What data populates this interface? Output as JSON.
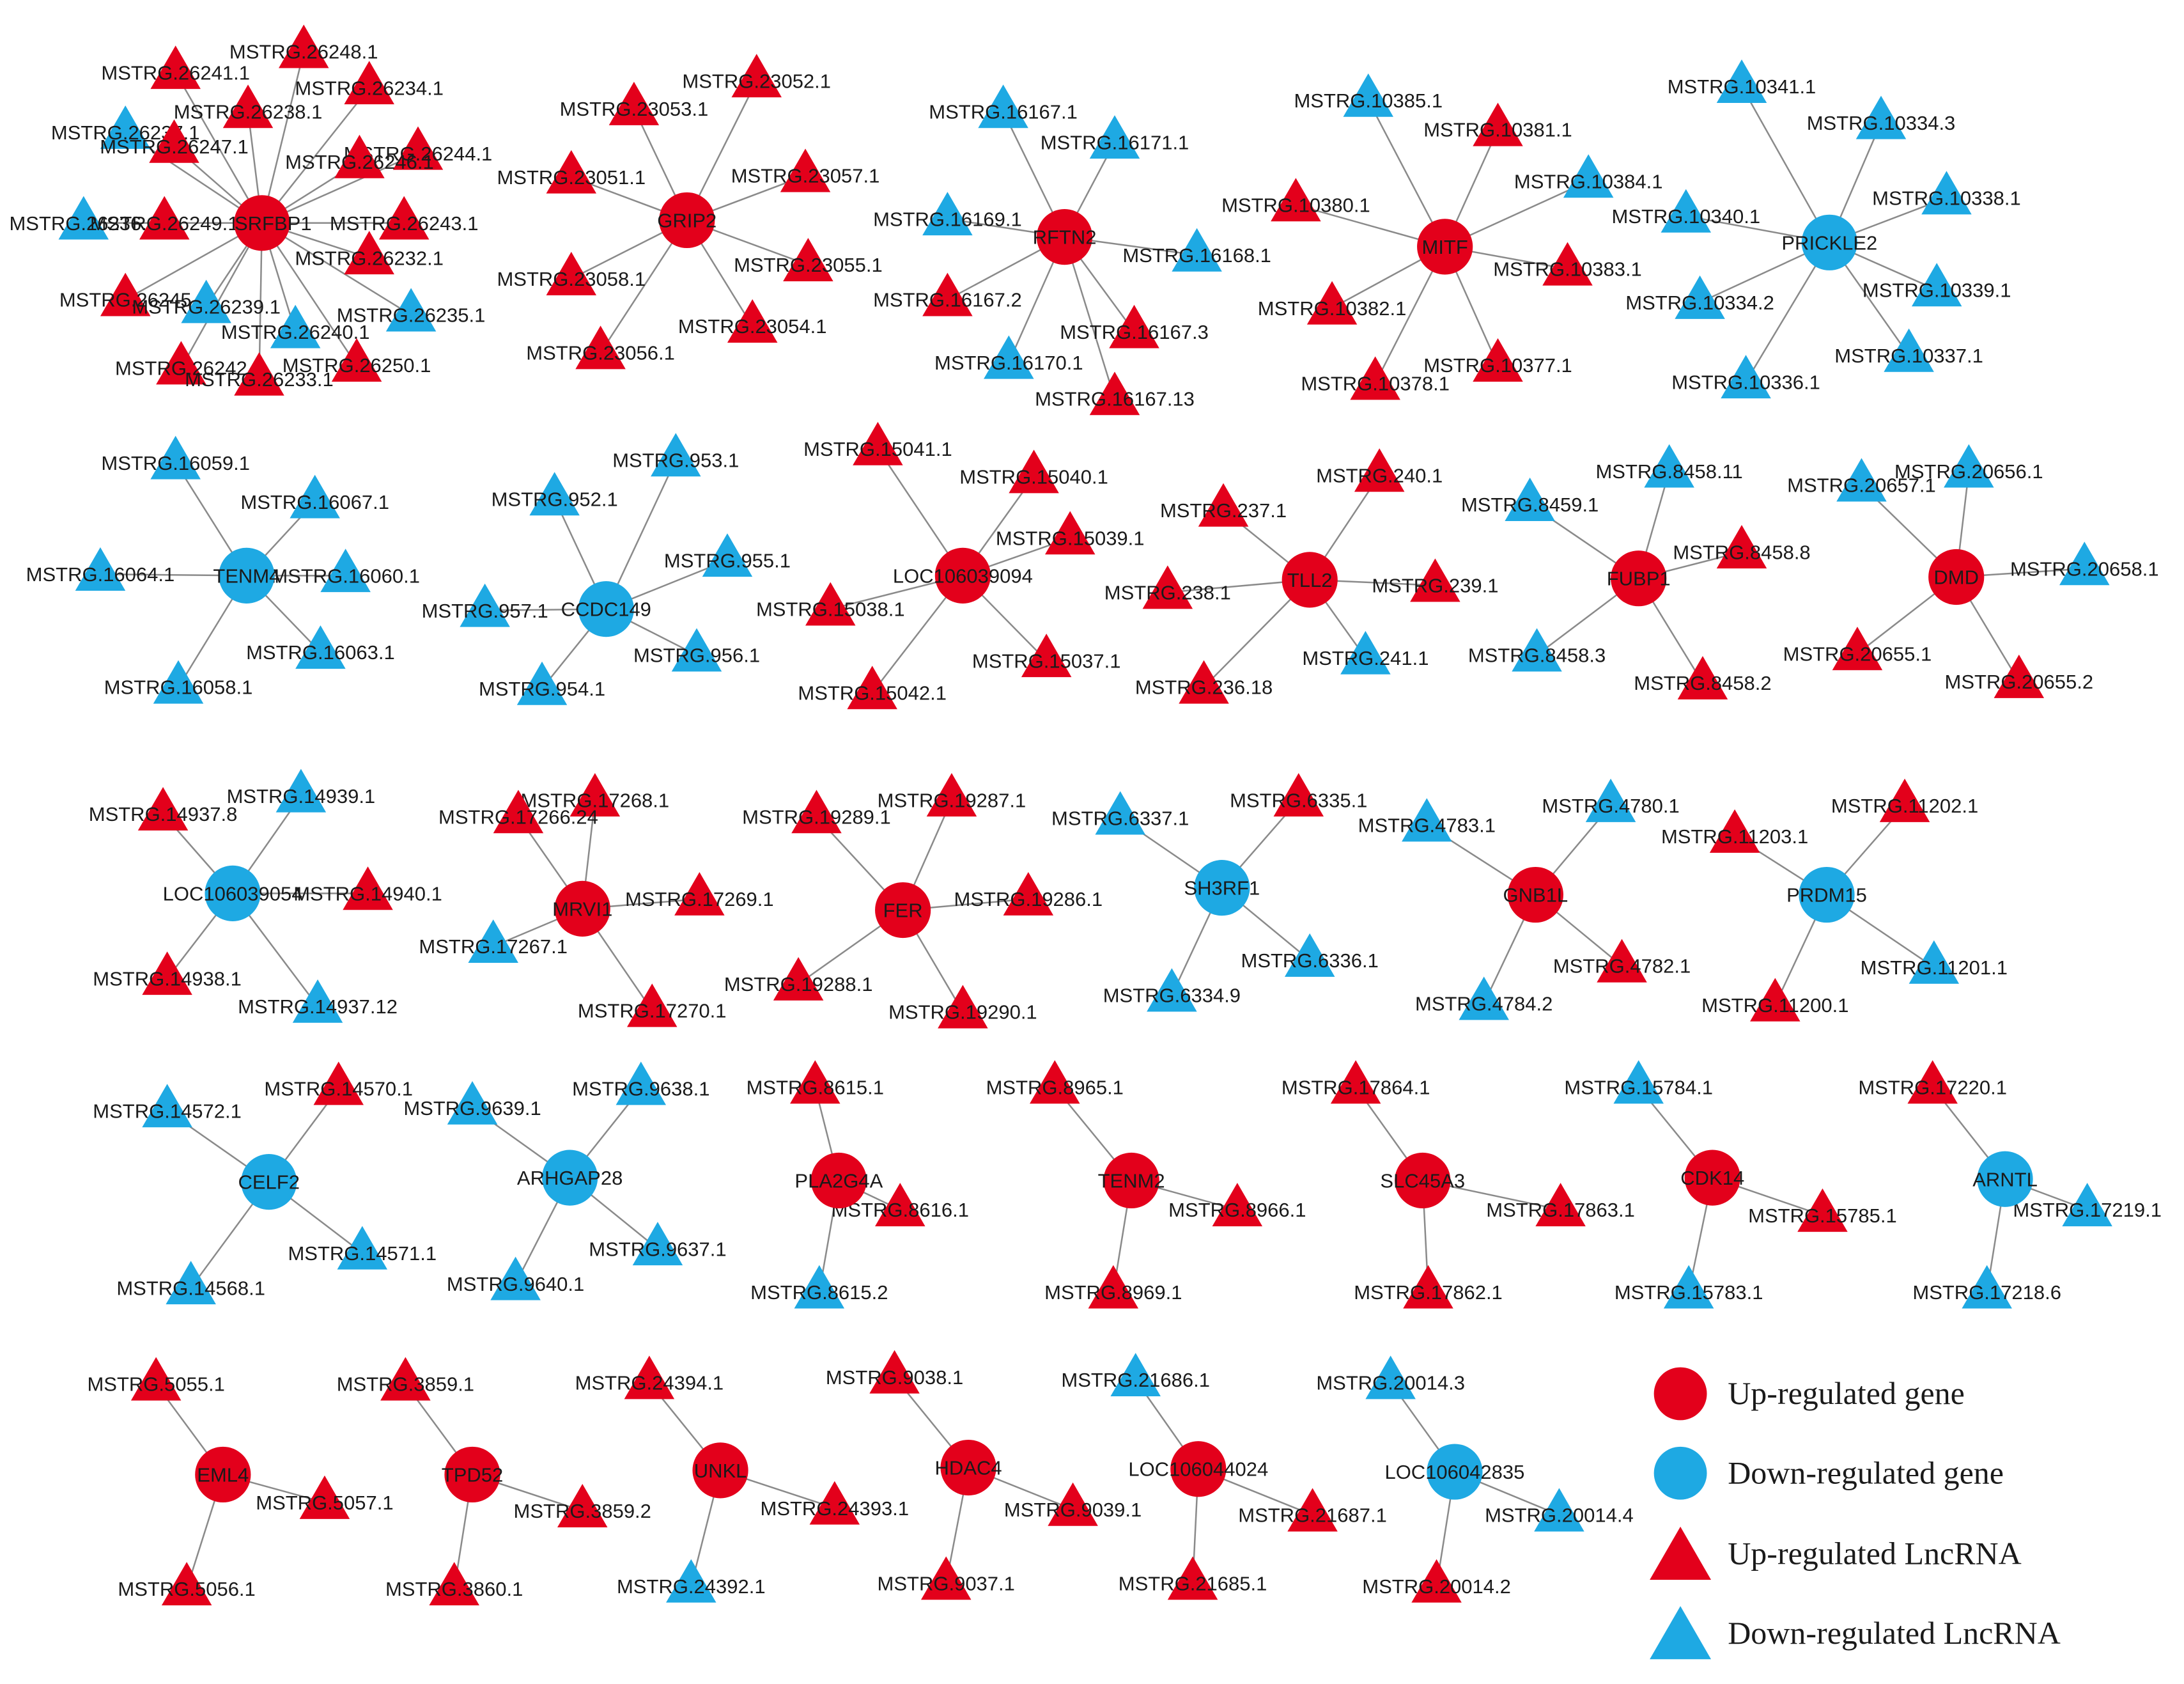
{
  "colors": {
    "up": "#e3001b",
    "down": "#1ea9e3",
    "edge": "#8a8a8a"
  },
  "legend": [
    {
      "label": "Up-regulated gene",
      "shape": "circle",
      "color": "up"
    },
    {
      "label": "Down-regulated gene",
      "shape": "circle",
      "color": "down"
    },
    {
      "label": "Up-regulated LncRNA",
      "shape": "triangle",
      "color": "up"
    },
    {
      "label": "Down-regulated LncRNA",
      "shape": "triangle",
      "color": "down"
    }
  ],
  "networks": [
    {
      "gene": "SRFBP1",
      "reg": "up",
      "lnc": [
        [
          "MSTRG.26248.1",
          "up"
        ],
        [
          "MSTRG.26241.1",
          "up"
        ],
        [
          "MSTRG.26234.1",
          "up"
        ],
        [
          "MSTRG.26238.1",
          "up"
        ],
        [
          "MSTRG.26237.1",
          "down"
        ],
        [
          "MSTRG.26247.1",
          "up"
        ],
        [
          "MSTRG.26244.1",
          "up"
        ],
        [
          "MSTRG.26246.1",
          "up"
        ],
        [
          "MSTRG.26236.1",
          "down"
        ],
        [
          "MSTRG.26249.1",
          "up"
        ],
        [
          "MSTRG.26243.1",
          "up"
        ],
        [
          "MSTRG.26232.1",
          "up"
        ],
        [
          "MSTRG.26245",
          "up"
        ],
        [
          "MSTRG.26239.1",
          "down"
        ],
        [
          "MSTRG.26240.1",
          "down"
        ],
        [
          "MSTRG.26235.1",
          "down"
        ],
        [
          "MSTRG.26242",
          "up"
        ],
        [
          "MSTRG.26233.1",
          "up"
        ],
        [
          "MSTRG.26250.1",
          "up"
        ]
      ]
    },
    {
      "gene": "GRIP2",
      "reg": "up",
      "lnc": [
        [
          "MSTRG.23052.1",
          "up"
        ],
        [
          "MSTRG.23053.1",
          "up"
        ],
        [
          "MSTRG.23057.1",
          "up"
        ],
        [
          "MSTRG.23051.1",
          "up"
        ],
        [
          "MSTRG.23055.1",
          "up"
        ],
        [
          "MSTRG.23058.1",
          "up"
        ],
        [
          "MSTRG.23054.1",
          "up"
        ],
        [
          "MSTRG.23056.1",
          "up"
        ]
      ]
    },
    {
      "gene": "RFTN2",
      "reg": "up",
      "lnc": [
        [
          "MSTRG.16167.1",
          "down"
        ],
        [
          "MSTRG.16171.1",
          "down"
        ],
        [
          "MSTRG.16169.1",
          "down"
        ],
        [
          "MSTRG.16168.1",
          "down"
        ],
        [
          "MSTRG.16167.2",
          "up"
        ],
        [
          "MSTRG.16167.3",
          "up"
        ],
        [
          "MSTRG.16170.1",
          "down"
        ],
        [
          "MSTRG.16167.13",
          "up"
        ]
      ]
    },
    {
      "gene": "MITF",
      "reg": "up",
      "lnc": [
        [
          "MSTRG.10385.1",
          "down"
        ],
        [
          "MSTRG.10381.1",
          "up"
        ],
        [
          "MSTRG.10384.1",
          "down"
        ],
        [
          "MSTRG.10380.1",
          "up"
        ],
        [
          "MSTRG.10383.1",
          "up"
        ],
        [
          "MSTRG.10382.1",
          "up"
        ],
        [
          "MSTRG.10377.1",
          "up"
        ],
        [
          "MSTRG.10378.1",
          "up"
        ]
      ]
    },
    {
      "gene": "PRICKLE2",
      "reg": "down",
      "lnc": [
        [
          "MSTRG.10341.1",
          "down"
        ],
        [
          "MSTRG.10334.3",
          "down"
        ],
        [
          "MSTRG.10338.1",
          "down"
        ],
        [
          "MSTRG.10340.1",
          "down"
        ],
        [
          "MSTRG.10339.1",
          "down"
        ],
        [
          "MSTRG.10334.2",
          "down"
        ],
        [
          "MSTRG.10337.1",
          "down"
        ],
        [
          "MSTRG.10336.1",
          "down"
        ]
      ]
    },
    {
      "gene": "TENM4",
      "reg": "down",
      "lnc": [
        [
          "MSTRG.16059.1",
          "down"
        ],
        [
          "MSTRG.16067.1",
          "down"
        ],
        [
          "MSTRG.16064.1",
          "down"
        ],
        [
          "MSTRG.16060.1",
          "down"
        ],
        [
          "MSTRG.16063.1",
          "down"
        ],
        [
          "MSTRG.16058.1",
          "down"
        ]
      ]
    },
    {
      "gene": "CCDC149",
      "reg": "down",
      "lnc": [
        [
          "MSTRG.953.1",
          "down"
        ],
        [
          "MSTRG.952.1",
          "down"
        ],
        [
          "MSTRG.955.1",
          "down"
        ],
        [
          "MSTRG.957.1",
          "down"
        ],
        [
          "MSTRG.956.1",
          "down"
        ],
        [
          "MSTRG.954.1",
          "down"
        ]
      ]
    },
    {
      "gene": "LOC106039094",
      "reg": "up",
      "lnc": [
        [
          "MSTRG.15041.1",
          "up"
        ],
        [
          "MSTRG.15040.1",
          "up"
        ],
        [
          "MSTRG.15039.1",
          "up"
        ],
        [
          "MSTRG.15038.1",
          "up"
        ],
        [
          "MSTRG.15037.1",
          "up"
        ],
        [
          "MSTRG.15042.1",
          "up"
        ]
      ]
    },
    {
      "gene": "TLL2",
      "reg": "up",
      "lnc": [
        [
          "MSTRG.240.1",
          "up"
        ],
        [
          "MSTRG.237.1",
          "up"
        ],
        [
          "MSTRG.239.1",
          "up"
        ],
        [
          "MSTRG.238.1",
          "up"
        ],
        [
          "MSTRG.241.1",
          "down"
        ],
        [
          "MSTRG.236.18",
          "up"
        ]
      ]
    },
    {
      "gene": "FUBP1",
      "reg": "up",
      "lnc": [
        [
          "MSTRG.8458.11",
          "down"
        ],
        [
          "MSTRG.8459.1",
          "down"
        ],
        [
          "MSTRG.8458.8",
          "up"
        ],
        [
          "MSTRG.8458.3",
          "down"
        ],
        [
          "MSTRG.8458.2",
          "up"
        ]
      ]
    },
    {
      "gene": "DMD",
      "reg": "up",
      "lnc": [
        [
          "MSTRG.20656.1",
          "down"
        ],
        [
          "MSTRG.20657.1",
          "down"
        ],
        [
          "MSTRG.20658.1",
          "down"
        ],
        [
          "MSTRG.20655.1",
          "up"
        ],
        [
          "MSTRG.20655.2",
          "up"
        ]
      ]
    },
    {
      "gene": "LOC106039054",
      "reg": "down",
      "lnc": [
        [
          "MSTRG.14939.1",
          "down"
        ],
        [
          "MSTRG.14937.8",
          "up"
        ],
        [
          "MSTRG.14940.1",
          "up"
        ],
        [
          "MSTRG.14938.1",
          "up"
        ],
        [
          "MSTRG.14937.12",
          "down"
        ]
      ]
    },
    {
      "gene": "MRVI1",
      "reg": "up",
      "lnc": [
        [
          "MSTRG.17268.1",
          "up"
        ],
        [
          "MSTRG.17266.24",
          "up"
        ],
        [
          "MSTRG.17269.1",
          "up"
        ],
        [
          "MSTRG.17267.1",
          "down"
        ],
        [
          "MSTRG.17270.1",
          "up"
        ]
      ]
    },
    {
      "gene": "FER",
      "reg": "up",
      "lnc": [
        [
          "MSTRG.19287.1",
          "up"
        ],
        [
          "MSTRG.19289.1",
          "up"
        ],
        [
          "MSTRG.19286.1",
          "up"
        ],
        [
          "MSTRG.19288.1",
          "up"
        ],
        [
          "MSTRG.19290.1",
          "up"
        ]
      ]
    },
    {
      "gene": "SH3RF1",
      "reg": "down",
      "lnc": [
        [
          "MSTRG.6335.1",
          "up"
        ],
        [
          "MSTRG.6337.1",
          "down"
        ],
        [
          "MSTRG.6336.1",
          "down"
        ],
        [
          "MSTRG.6334.9",
          "down"
        ]
      ]
    },
    {
      "gene": "GNB1L",
      "reg": "up",
      "lnc": [
        [
          "MSTRG.4780.1",
          "down"
        ],
        [
          "MSTRG.4783.1",
          "down"
        ],
        [
          "MSTRG.4782.1",
          "up"
        ],
        [
          "MSTRG.4784.2",
          "down"
        ]
      ]
    },
    {
      "gene": "PRDM15",
      "reg": "down",
      "lnc": [
        [
          "MSTRG.11202.1",
          "up"
        ],
        [
          "MSTRG.11203.1",
          "up"
        ],
        [
          "MSTRG.11201.1",
          "down"
        ],
        [
          "MSTRG.11200.1",
          "up"
        ]
      ]
    },
    {
      "gene": "CELF2",
      "reg": "down",
      "lnc": [
        [
          "MSTRG.14570.1",
          "up"
        ],
        [
          "MSTRG.14572.1",
          "down"
        ],
        [
          "MSTRG.14571.1",
          "down"
        ],
        [
          "MSTRG.14568.1",
          "down"
        ]
      ]
    },
    {
      "gene": "ARHGAP28",
      "reg": "down",
      "lnc": [
        [
          "MSTRG.9638.1",
          "down"
        ],
        [
          "MSTRG.9639.1",
          "down"
        ],
        [
          "MSTRG.9637.1",
          "down"
        ],
        [
          "MSTRG.9640.1",
          "down"
        ]
      ]
    },
    {
      "gene": "PLA2G4A",
      "reg": "up",
      "lnc": [
        [
          "MSTRG.8615.1",
          "up"
        ],
        [
          "MSTRG.8616.1",
          "up"
        ],
        [
          "MSTRG.8615.2",
          "down"
        ]
      ]
    },
    {
      "gene": "TENM2",
      "reg": "up",
      "lnc": [
        [
          "MSTRG.8965.1",
          "up"
        ],
        [
          "MSTRG.8966.1",
          "up"
        ],
        [
          "MSTRG.8969.1",
          "up"
        ]
      ]
    },
    {
      "gene": "SLC45A3",
      "reg": "up",
      "lnc": [
        [
          "MSTRG.17864.1",
          "up"
        ],
        [
          "MSTRG.17863.1",
          "up"
        ],
        [
          "MSTRG.17862.1",
          "up"
        ]
      ]
    },
    {
      "gene": "CDK14",
      "reg": "up",
      "lnc": [
        [
          "MSTRG.15784.1",
          "down"
        ],
        [
          "MSTRG.15785.1",
          "up"
        ],
        [
          "MSTRG.15783.1",
          "down"
        ]
      ]
    },
    {
      "gene": "ARNTL",
      "reg": "down",
      "lnc": [
        [
          "MSTRG.17220.1",
          "up"
        ],
        [
          "MSTRG.17219.1",
          "down"
        ],
        [
          "MSTRG.17218.6",
          "down"
        ]
      ]
    },
    {
      "gene": "EML4",
      "reg": "up",
      "lnc": [
        [
          "MSTRG.5055.1",
          "up"
        ],
        [
          "MSTRG.5057.1",
          "up"
        ],
        [
          "MSTRG.5056.1",
          "up"
        ]
      ]
    },
    {
      "gene": "TPD52",
      "reg": "up",
      "lnc": [
        [
          "MSTRG.3859.1",
          "up"
        ],
        [
          "MSTRG.3859.2",
          "up"
        ],
        [
          "MSTRG.3860.1",
          "up"
        ]
      ]
    },
    {
      "gene": "UNKL",
      "reg": "up",
      "lnc": [
        [
          "MSTRG.24394.1",
          "up"
        ],
        [
          "MSTRG.24393.1",
          "up"
        ],
        [
          "MSTRG.24392.1",
          "down"
        ]
      ]
    },
    {
      "gene": "HDAC4",
      "reg": "up",
      "lnc": [
        [
          "MSTRG.9038.1",
          "up"
        ],
        [
          "MSTRG.9039.1",
          "up"
        ],
        [
          "MSTRG.9037.1",
          "up"
        ]
      ]
    },
    {
      "gene": "LOC106044024",
      "reg": "up",
      "lnc": [
        [
          "MSTRG.21686.1",
          "down"
        ],
        [
          "MSTRG.21687.1",
          "up"
        ],
        [
          "MSTRG.21685.1",
          "up"
        ]
      ]
    },
    {
      "gene": "LOC106042835",
      "reg": "down",
      "lnc": [
        [
          "MSTRG.20014.3",
          "down"
        ],
        [
          "MSTRG.20014.4",
          "down"
        ],
        [
          "MSTRG.20014.2",
          "up"
        ]
      ]
    }
  ]
}
